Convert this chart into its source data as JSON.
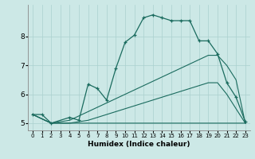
{
  "xlabel": "Humidex (Indice chaleur)",
  "bg_color": "#cce8e6",
  "grid_color": "#aad0ce",
  "line_color": "#1a6b5e",
  "xlim": [
    -0.5,
    23.5
  ],
  "ylim": [
    4.75,
    9.1
  ],
  "yticks": [
    5,
    6,
    7,
    8
  ],
  "xticks": [
    0,
    1,
    2,
    3,
    4,
    5,
    6,
    7,
    8,
    9,
    10,
    11,
    12,
    13,
    14,
    15,
    16,
    17,
    18,
    19,
    20,
    21,
    22,
    23
  ],
  "series": [
    {
      "x": [
        0,
        1,
        2,
        4,
        5,
        6,
        7,
        8,
        9,
        10,
        11,
        12,
        13,
        14,
        15,
        16,
        17,
        18,
        19,
        20,
        21,
        22,
        23
      ],
      "y": [
        5.3,
        5.3,
        5.0,
        5.2,
        5.1,
        6.35,
        6.2,
        5.8,
        6.9,
        7.8,
        8.05,
        8.65,
        8.75,
        8.65,
        8.55,
        8.55,
        8.55,
        7.85,
        7.85,
        7.4,
        6.4,
        5.9,
        5.05
      ],
      "marker": true
    },
    {
      "x": [
        0,
        2,
        4,
        5,
        6,
        7,
        8,
        9,
        10,
        11,
        12,
        13,
        14,
        15,
        16,
        17,
        18,
        19,
        20,
        21,
        22,
        23
      ],
      "y": [
        5.3,
        5.0,
        5.1,
        5.25,
        5.4,
        5.55,
        5.7,
        5.85,
        6.0,
        6.15,
        6.3,
        6.45,
        6.6,
        6.75,
        6.9,
        7.05,
        7.2,
        7.35,
        7.35,
        7.0,
        6.5,
        5.0
      ],
      "marker": false
    },
    {
      "x": [
        0,
        2,
        4,
        5,
        6,
        7,
        8,
        9,
        10,
        11,
        12,
        13,
        14,
        15,
        16,
        17,
        18,
        19,
        20,
        21,
        22,
        23
      ],
      "y": [
        5.3,
        5.0,
        5.0,
        5.05,
        5.1,
        5.2,
        5.3,
        5.4,
        5.5,
        5.6,
        5.7,
        5.8,
        5.9,
        6.0,
        6.1,
        6.2,
        6.3,
        6.4,
        6.4,
        6.0,
        5.5,
        5.0
      ],
      "marker": false
    },
    {
      "x": [
        0,
        2,
        4,
        19,
        23
      ],
      "y": [
        5.3,
        5.0,
        5.0,
        5.0,
        5.0
      ],
      "marker": false
    }
  ]
}
